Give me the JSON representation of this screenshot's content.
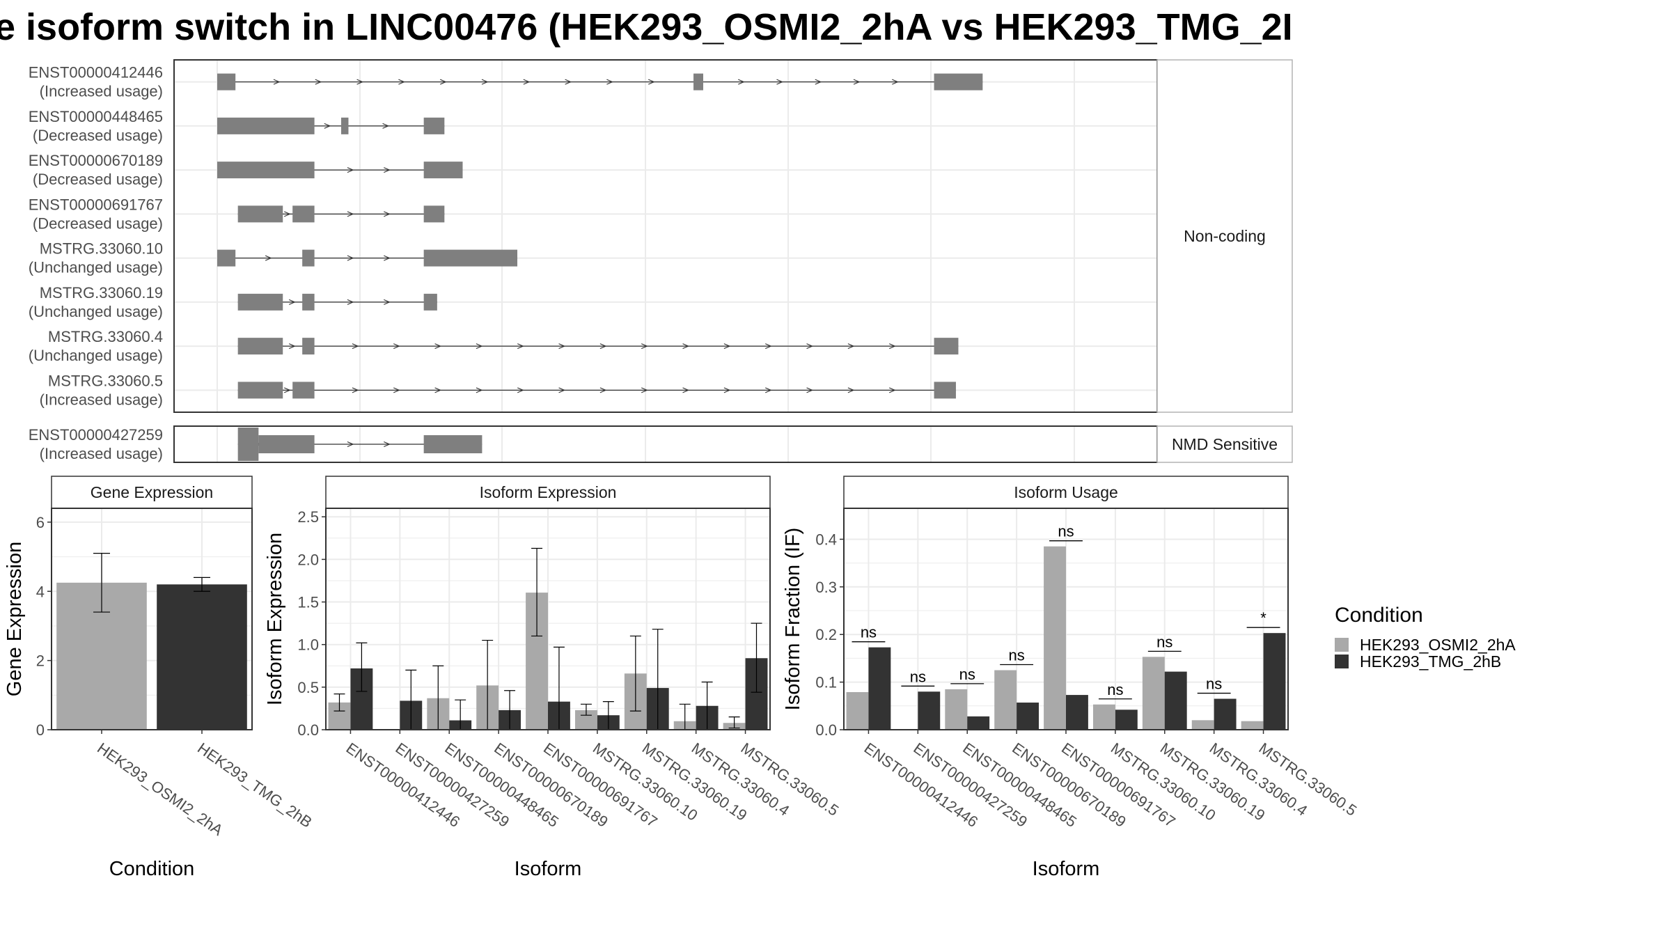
{
  "title": "e isoform switch in LINC00476 (HEK293_OSMI2_2hA vs HEK293_TMG_2I",
  "colors": {
    "cond1": "#a9a9a9",
    "cond2": "#333333",
    "exon": "#7f7f7f",
    "grid": "#ebebeb",
    "panel_border": "#333333",
    "strip_border": "#b3b3b3"
  },
  "structure": {
    "panels": [
      {
        "label": "Non-coding",
        "transcripts": [
          {
            "id": "ENST00000412446",
            "usage": "(Increased usage)",
            "exons": [
              [
                0,
                1.5
              ],
              [
                39.2,
                40.0
              ],
              [
                59.0,
                63.0
              ]
            ]
          },
          {
            "id": "ENST00000448465",
            "usage": "(Decreased usage)",
            "exons": [
              [
                0,
                8.0
              ],
              [
                10.2,
                10.8
              ],
              [
                17.0,
                18.7
              ]
            ]
          },
          {
            "id": "ENST00000670189",
            "usage": "(Decreased usage)",
            "exons": [
              [
                0,
                8.0
              ],
              [
                17.0,
                20.2
              ]
            ]
          },
          {
            "id": "ENST00000691767",
            "usage": "(Decreased usage)",
            "exons": [
              [
                1.7,
                5.4
              ],
              [
                6.2,
                8.0
              ],
              [
                17.0,
                18.7
              ]
            ]
          },
          {
            "id": "MSTRG.33060.10",
            "usage": "(Unchanged usage)",
            "exons": [
              [
                0,
                1.5
              ],
              [
                7.0,
                8.0
              ],
              [
                17.0,
                24.7
              ]
            ]
          },
          {
            "id": "MSTRG.33060.19",
            "usage": "(Unchanged usage)",
            "exons": [
              [
                1.7,
                5.4
              ],
              [
                7.0,
                8.0
              ],
              [
                17.0,
                18.1
              ]
            ]
          },
          {
            "id": "MSTRG.33060.4",
            "usage": "(Unchanged usage)",
            "exons": [
              [
                1.7,
                5.4
              ],
              [
                7.0,
                8.0
              ],
              [
                59.0,
                61.0
              ]
            ]
          },
          {
            "id": "MSTRG.33060.5",
            "usage": "(Increased usage)",
            "exons": [
              [
                1.7,
                5.4
              ],
              [
                6.2,
                8.0
              ],
              [
                59.0,
                60.8
              ]
            ]
          }
        ]
      },
      {
        "label": "NMD Sensitive",
        "transcripts": [
          {
            "id": "ENST00000427259",
            "usage": "(Increased usage)",
            "exons": [
              [
                1.7,
                3.4
              ],
              [
                3.4,
                8.0
              ],
              [
                17.0,
                21.8
              ]
            ]
          }
        ]
      }
    ]
  },
  "chart_data": [
    {
      "type": "bar",
      "title": "Gene Expression",
      "xlabel": "Condition",
      "ylabel": "Gene Expression",
      "ylim": [
        0,
        6.4
      ],
      "yticks": [
        0,
        2,
        4,
        6
      ],
      "categories": [
        "HEK293_OSMI2_2hA",
        "HEK293_TMG_2hB"
      ],
      "values": [
        4.25,
        4.2
      ],
      "errors": [
        [
          3.4,
          5.1
        ],
        [
          4.0,
          4.4
        ]
      ]
    },
    {
      "type": "bar",
      "title": "Isoform Expression",
      "xlabel": "Isoform",
      "ylabel": "Isoform Expression",
      "ylim": [
        0,
        2.6
      ],
      "yticks": [
        "0.0",
        "0.5",
        "1.0",
        "1.5",
        "2.0",
        "2.5"
      ],
      "categories": [
        "ENST00000412446",
        "ENST00000427259",
        "ENST00000448465",
        "ENST00000670189",
        "ENST00000691767",
        "MSTRG.33060.10",
        "MSTRG.33060.19",
        "MSTRG.33060.4",
        "MSTRG.33060.5"
      ],
      "series": [
        {
          "name": "HEK293_OSMI2_2hA",
          "values": [
            0.32,
            0.0,
            0.37,
            0.52,
            1.61,
            0.23,
            0.66,
            0.1,
            0.08
          ],
          "errors": [
            [
              0.22,
              0.42
            ],
            [
              0.0,
              0.0
            ],
            [
              0.0,
              0.75
            ],
            [
              0.0,
              1.05
            ],
            [
              1.1,
              2.13
            ],
            [
              0.17,
              0.3
            ],
            [
              0.22,
              1.1
            ],
            [
              0.0,
              0.3
            ],
            [
              0.02,
              0.15
            ]
          ]
        },
        {
          "name": "HEK293_TMG_2hB",
          "values": [
            0.72,
            0.34,
            0.11,
            0.23,
            0.33,
            0.17,
            0.49,
            0.28,
            0.84
          ],
          "errors": [
            [
              0.45,
              1.02
            ],
            [
              0.0,
              0.7
            ],
            [
              0.0,
              0.35
            ],
            [
              0.0,
              0.46
            ],
            [
              0.0,
              0.97
            ],
            [
              0.0,
              0.33
            ],
            [
              0.0,
              1.18
            ],
            [
              0.0,
              0.56
            ],
            [
              0.44,
              1.25
            ]
          ]
        }
      ]
    },
    {
      "type": "bar",
      "title": "Isoform Usage",
      "xlabel": "Isoform",
      "ylabel": "Isoform Fraction (IF)",
      "ylim": [
        0,
        0.465
      ],
      "yticks": [
        "0.0",
        "0.1",
        "0.2",
        "0.3",
        "0.4"
      ],
      "categories": [
        "ENST00000412446",
        "ENST00000427259",
        "ENST00000448465",
        "ENST00000670189",
        "ENST00000691767",
        "MSTRG.33060.10",
        "MSTRG.33060.19",
        "MSTRG.33060.4",
        "MSTRG.33060.5"
      ],
      "series": [
        {
          "name": "HEK293_OSMI2_2hA",
          "values": [
            0.079,
            0.0,
            0.085,
            0.125,
            0.385,
            0.053,
            0.153,
            0.02,
            0.018
          ]
        },
        {
          "name": "HEK293_TMG_2hB",
          "values": [
            0.173,
            0.08,
            0.028,
            0.057,
            0.073,
            0.042,
            0.122,
            0.065,
            0.203
          ]
        }
      ],
      "significance": [
        "ns",
        "ns",
        "ns",
        "ns",
        "ns",
        "ns",
        "ns",
        "ns",
        "*"
      ]
    }
  ],
  "legend": {
    "title": "Condition",
    "entries": [
      "HEK293_OSMI2_2hA",
      "HEK293_TMG_2hB"
    ]
  }
}
